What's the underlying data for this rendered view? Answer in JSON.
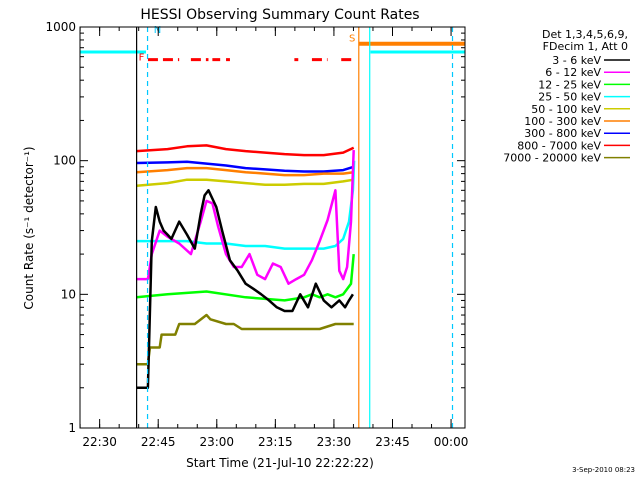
{
  "chart_data": {
    "type": "line",
    "title": "HESSI Observing Summary Count Rates",
    "xlabel": "Start Time (21-Jul-10 22:22:22)",
    "ylabel": "Count Rate (s⁻¹ detector⁻¹)",
    "yscale": "log",
    "ylim": [
      1,
      1000
    ],
    "xlim_minutes_after_start": [
      2.6,
      101.2
    ],
    "y_tick_labels": [
      "1",
      "10",
      "100",
      "1000"
    ],
    "x_tick_labels": [
      "22:30",
      "22:45",
      "23:00",
      "23:15",
      "23:30",
      "23:45",
      "00:00"
    ],
    "x_tick_minutes": [
      7.63,
      22.63,
      37.63,
      52.63,
      67.63,
      82.63,
      97.63
    ],
    "legend_header": [
      "Det 1,3,4,5,6,9,",
      "FDecim 1, Att 0"
    ],
    "legend_position": "right",
    "series": [
      {
        "name": "3 - 6 keV",
        "color": "#000000",
        "x": [
          17.1,
          18.5,
          19.5,
          20.0,
          21.0,
          22.0,
          23.0,
          24.0,
          25.0,
          26.0,
          28.0,
          30.0,
          32.0,
          33.5,
          34.5,
          35.5,
          36.5,
          37.5,
          39.0,
          41.0,
          43.0,
          45.0,
          47.0,
          49.0,
          51.0,
          53.0,
          55.0,
          57.0,
          59.0,
          61.0,
          63.0,
          65.0,
          67.0,
          69.0,
          70.5,
          71.5,
          72.5
        ],
        "y": [
          2,
          2,
          2,
          2,
          25,
          45,
          35,
          30,
          28,
          26,
          35,
          28,
          22,
          40,
          55,
          60,
          52,
          45,
          30,
          18,
          15,
          12,
          11,
          10,
          9,
          8,
          7.5,
          7.5,
          10,
          8,
          12,
          9,
          8,
          9,
          8,
          9,
          10
        ]
      },
      {
        "name": "6 - 12 keV",
        "color": "#ff00ff",
        "x": [
          17.1,
          20.0,
          21.0,
          23.0,
          25.0,
          28.0,
          31.0,
          33.5,
          35.0,
          36.5,
          38.0,
          40.0,
          42.0,
          44.0,
          46.0,
          48.0,
          50.0,
          52.0,
          54.0,
          56.0,
          58.0,
          60.0,
          62.0,
          64.0,
          66.0,
          68.0,
          69.0,
          70.0,
          71.0,
          72.0,
          72.7
        ],
        "y": [
          13,
          13,
          20,
          30,
          27,
          24,
          20,
          35,
          50,
          48,
          32,
          20,
          16,
          16,
          20,
          14,
          13,
          17,
          16,
          12,
          13,
          14,
          18,
          25,
          36,
          60,
          15,
          13,
          16,
          35,
          120
        ]
      },
      {
        "name": "12 - 25 keV",
        "color": "#00ff00",
        "x": [
          17.1,
          25.0,
          35.0,
          45.0,
          55.0,
          60.0,
          62.0,
          64.0,
          66.0,
          68.0,
          70.0,
          72.0,
          72.7
        ],
        "y": [
          9.5,
          10,
          10.5,
          9.5,
          9,
          9.5,
          10,
          9.5,
          10,
          9.5,
          10,
          12,
          20
        ]
      },
      {
        "name": "25 - 50 keV",
        "color": "#00ffff",
        "x": [
          17.1,
          25.0,
          30.0,
          35.0,
          40.0,
          45.0,
          50.0,
          55.0,
          60.0,
          65.0,
          68.0,
          70.0,
          71.5,
          72.5,
          72.8
        ],
        "y": [
          25,
          25,
          25,
          24,
          24,
          23,
          23,
          22,
          22,
          22,
          23,
          26,
          35,
          60,
          100
        ]
      },
      {
        "name": "50 - 100 keV",
        "color": "#cccc00",
        "x": [
          17.1,
          25.0,
          30.0,
          35.0,
          40.0,
          45.0,
          50.0,
          55.0,
          60.0,
          65.0,
          70.0,
          72.7
        ],
        "y": [
          65,
          68,
          72,
          72,
          70,
          68,
          66,
          66,
          67,
          67,
          70,
          72
        ]
      },
      {
        "name": "100 - 300 keV",
        "color": "#ff7f00",
        "x": [
          17.1,
          25.0,
          30.0,
          35.0,
          40.0,
          45.0,
          50.0,
          55.0,
          60.0,
          65.0,
          70.0,
          72.7
        ],
        "y": [
          82,
          85,
          88,
          88,
          85,
          82,
          80,
          78,
          78,
          80,
          80,
          82
        ]
      },
      {
        "name": "300 - 800 keV",
        "color": "#0000ff",
        "x": [
          17.1,
          25.0,
          30.0,
          35.0,
          40.0,
          45.0,
          50.0,
          55.0,
          60.0,
          65.0,
          70.0,
          72.7
        ],
        "y": [
          96,
          97,
          98,
          95,
          92,
          88,
          86,
          84,
          83,
          83,
          85,
          90
        ]
      },
      {
        "name": "800 - 7000 keV",
        "color": "#ff0000",
        "x": [
          17.1,
          25.0,
          30.0,
          35.0,
          40.0,
          45.0,
          50.0,
          55.0,
          60.0,
          65.0,
          70.0,
          72.7
        ],
        "y": [
          118,
          122,
          128,
          130,
          122,
          118,
          115,
          112,
          110,
          110,
          115,
          125
        ]
      },
      {
        "name": "7000 - 20000 keV",
        "color": "#808000",
        "x": [
          17.1,
          20.0,
          20.5,
          23.0,
          23.5,
          27.0,
          28.0,
          32.0,
          35.0,
          36.0,
          40.0,
          42.0,
          44.0,
          48.0,
          52.0,
          56.0,
          60.0,
          64.0,
          68.0,
          72.7
        ],
        "y": [
          3,
          3,
          4,
          4,
          5,
          5,
          6,
          6,
          7,
          6.5,
          6,
          6,
          5.5,
          5.5,
          5.5,
          5.5,
          5.5,
          5.5,
          6,
          6
        ]
      }
    ],
    "annotations": [
      {
        "text": "N",
        "color": "#00c8ff"
      },
      {
        "text": "F",
        "color": "#ff0000"
      },
      {
        "text": "S",
        "color": "#ff7f00"
      }
    ],
    "flag_bars": [
      {
        "label": "N",
        "color": "#00ffff",
        "segments": [
          [
            2.6,
            19.5
          ],
          [
            77.0,
            101.2
          ]
        ],
        "value": 650
      },
      {
        "label": "S",
        "color": "#ff7f00",
        "segments": [
          [
            74.0,
            101.2
          ]
        ],
        "value": 750
      },
      {
        "label": "F",
        "color": "#ff0000",
        "segments": [
          [
            20.0,
            28.0
          ],
          [
            31.0,
            35.5
          ],
          [
            36.5,
            38.5
          ],
          [
            40.0,
            41.0
          ],
          [
            57.5,
            58.5
          ],
          [
            62.0,
            66.0
          ],
          [
            69.5,
            72.5
          ]
        ],
        "value": 570
      }
    ],
    "boundary_lines": [
      {
        "x": 17.1,
        "color": "#000000"
      },
      {
        "x": 19.9,
        "color": "#00c8ff",
        "dashed": true
      },
      {
        "x": 74.0,
        "color": "#ff7f00"
      },
      {
        "x": 76.8,
        "color": "#00ffff"
      },
      {
        "x": 98.0,
        "color": "#00c8ff",
        "dashed": true
      }
    ],
    "footer_date": "3-Sep-2010 08:23"
  }
}
